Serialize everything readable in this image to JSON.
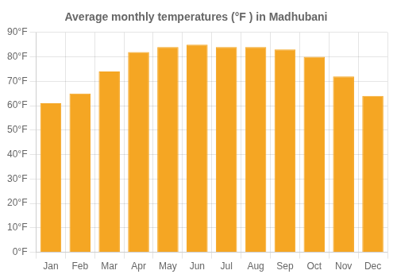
{
  "chart_data": {
    "type": "bar",
    "title": "Average monthly temperatures (°F ) in Madhubani",
    "categories": [
      "Jan",
      "Feb",
      "Mar",
      "Apr",
      "May",
      "Jun",
      "Jul",
      "Aug",
      "Sep",
      "Oct",
      "Nov",
      "Dec"
    ],
    "values": [
      61,
      65,
      74,
      82,
      84,
      85,
      84,
      84,
      83,
      80,
      72,
      64
    ],
    "color": "#F5A623",
    "ylim": [
      0,
      90
    ],
    "yticks": [
      {
        "value": 0,
        "label": "0°F"
      },
      {
        "value": 10,
        "label": "10°F"
      },
      {
        "value": 20,
        "label": "20°F"
      },
      {
        "value": 30,
        "label": "30°F"
      },
      {
        "value": 40,
        "label": "40°F"
      },
      {
        "value": 50,
        "label": "50°F"
      },
      {
        "value": 60,
        "label": "60°F"
      },
      {
        "value": 70,
        "label": "70°F"
      },
      {
        "value": 80,
        "label": "80°F"
      },
      {
        "value": 90,
        "label": "90°F"
      }
    ],
    "grid": true
  }
}
